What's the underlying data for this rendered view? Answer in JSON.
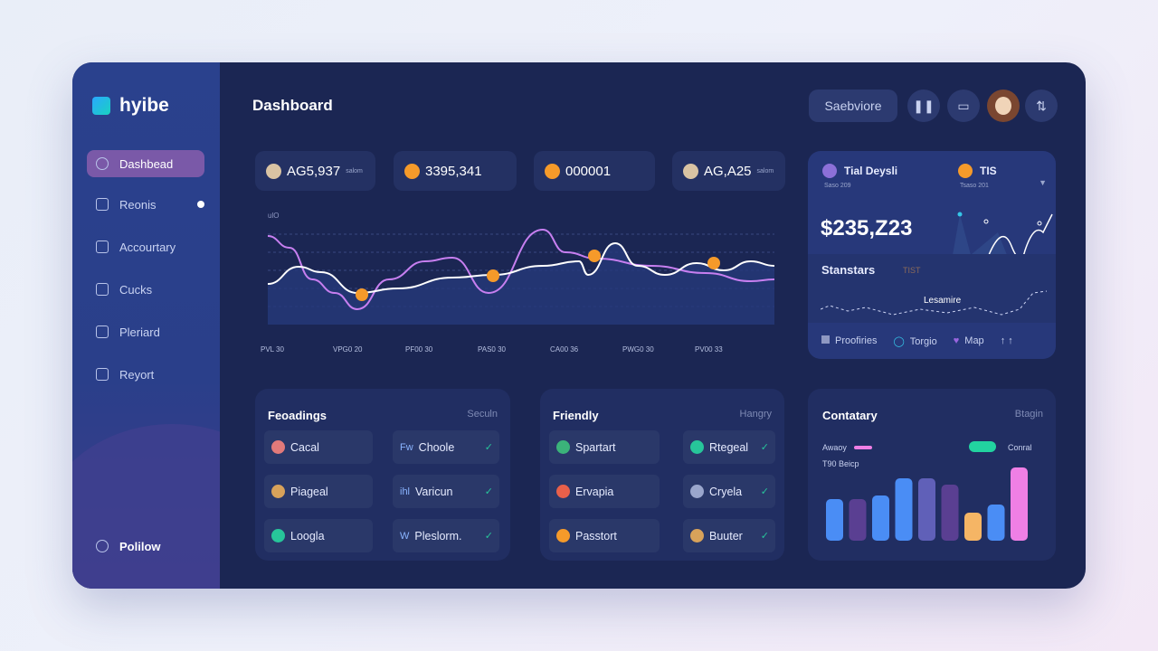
{
  "brand": {
    "name": "hyibe"
  },
  "sidebar": {
    "items": [
      {
        "label": "Dashbead",
        "icon": "search-icon",
        "active": true
      },
      {
        "label": "Reonis",
        "icon": "document-icon",
        "badge": true
      },
      {
        "label": "Accourtary",
        "icon": "account-icon"
      },
      {
        "label": "Cucks",
        "icon": "coins-icon"
      },
      {
        "label": "Pleriard",
        "icon": "planner-icon"
      },
      {
        "label": "Reyort",
        "icon": "report-icon"
      }
    ],
    "footer": {
      "label": "Polilow",
      "icon": "help-icon"
    }
  },
  "header": {
    "title": "Dashboard",
    "search_button": "Saebviore",
    "icons": [
      "pause-icon",
      "wallet-icon",
      "avatar",
      "transfer-icon"
    ]
  },
  "stats": [
    {
      "value": "AG5,937",
      "suffix": "salom",
      "icon": "avatar"
    },
    {
      "value": "3395,341",
      "icon": "coin-icon"
    },
    {
      "value": "000001",
      "icon": "coin-icon"
    },
    {
      "value": "AG,A25",
      "suffix": "salom",
      "icon": "avatar"
    }
  ],
  "chart_data": {
    "type": "line",
    "ylabel": "ulO",
    "xlim": [
      0,
      560
    ],
    "ylim": [
      0,
      6
    ],
    "x_ticks": [
      "PVL 30",
      "VPG0 20",
      "PF00 30",
      "PAS0 30",
      "CA00 36",
      "PWG0 30",
      "PV00 33"
    ],
    "series": [
      {
        "name": "white",
        "color": "#ffffff",
        "points": [
          [
            0,
            2.25
          ],
          [
            34,
            3.2
          ],
          [
            59,
            2.9
          ],
          [
            99,
            1.75
          ],
          [
            144,
            2
          ],
          [
            204,
            2.6
          ],
          [
            249,
            2.75
          ],
          [
            304,
            3.25
          ],
          [
            344,
            3.5
          ],
          [
            354,
            2.75
          ],
          [
            384,
            4.5
          ],
          [
            409,
            3.25
          ],
          [
            439,
            2.75
          ],
          [
            474,
            3.4
          ],
          [
            504,
            3
          ],
          [
            534,
            3.5
          ],
          [
            560,
            3.25
          ]
        ]
      },
      {
        "name": "purple",
        "color": "#c77ff0",
        "points": [
          [
            0,
            4.9
          ],
          [
            24,
            4.25
          ],
          [
            49,
            2.5
          ],
          [
            74,
            1.75
          ],
          [
            99,
            0.85
          ],
          [
            134,
            2.5
          ],
          [
            174,
            3.5
          ],
          [
            204,
            3.7
          ],
          [
            244,
            1.75
          ],
          [
            304,
            5.25
          ],
          [
            329,
            4
          ],
          [
            364,
            3.65
          ],
          [
            424,
            3.25
          ],
          [
            484,
            2.85
          ],
          [
            534,
            2.4
          ],
          [
            560,
            2.5
          ]
        ]
      }
    ],
    "markers": [
      [
        104,
        1.65
      ],
      [
        249,
        2.7
      ],
      [
        361,
        3.8
      ],
      [
        493,
        3.4
      ]
    ],
    "marker_color": "#f59a2a"
  },
  "summary": {
    "tab1": {
      "label": "Tial Deysli",
      "sub": "Saso 209"
    },
    "tab2": {
      "label": "TIS",
      "sub": "Tsaso 201"
    },
    "amount": "$235,Z23",
    "section": "Stanstars",
    "section_tag": "TIST",
    "annotation": "Lesamire",
    "legend": [
      {
        "label": "Proofiries",
        "icon": "square-icon"
      },
      {
        "label": "Torgio",
        "icon": "cloud-icon"
      },
      {
        "label": "Map",
        "icon": "heart-icon"
      }
    ]
  },
  "panels": [
    {
      "title": "Feoadings",
      "link": "Seculn",
      "items": [
        {
          "label": "Cacal",
          "color": "#e27a7a"
        },
        {
          "label": "Choole",
          "prefix": "Fw",
          "check": true
        },
        {
          "label": "Piageal",
          "color": "#d8a25a"
        },
        {
          "label": "Varicun",
          "prefix": "ihl",
          "check": true
        },
        {
          "label": "Loogla",
          "color": "#27c59a"
        },
        {
          "label": "Pleslorm.",
          "prefix": "W",
          "check": true
        }
      ]
    },
    {
      "title": "Friendly",
      "link": "Hangry",
      "items": [
        {
          "label": "Spartart",
          "color": "#3bb37a"
        },
        {
          "label": "Rtegeal",
          "color": "#27c59a",
          "check": true
        },
        {
          "label": "Ervapia",
          "color": "#e8604a"
        },
        {
          "label": "Cryela",
          "color": "#9aa6cc",
          "check": true
        },
        {
          "label": "Passtort",
          "color": "#f59a2a"
        },
        {
          "label": "Buuter",
          "color": "#d8a25a",
          "check": true
        }
      ]
    }
  ],
  "bars_panel": {
    "title": "Contatary",
    "link": "Btagin",
    "legend1": "Awaoy",
    "legend2": "Conral",
    "sub": "T90 Beicp",
    "chart_data": {
      "type": "bar",
      "values": [
        46,
        46,
        50,
        69,
        69,
        62,
        31,
        40,
        81
      ],
      "colors": [
        "#4a8df5",
        "#5a3f92",
        "#4a8df5",
        "#4a8df5",
        "#6060b8",
        "#5a3f92",
        "#f5b565",
        "#4a8df5",
        "#ef7fe5"
      ],
      "ylim": [
        0,
        90
      ]
    }
  }
}
